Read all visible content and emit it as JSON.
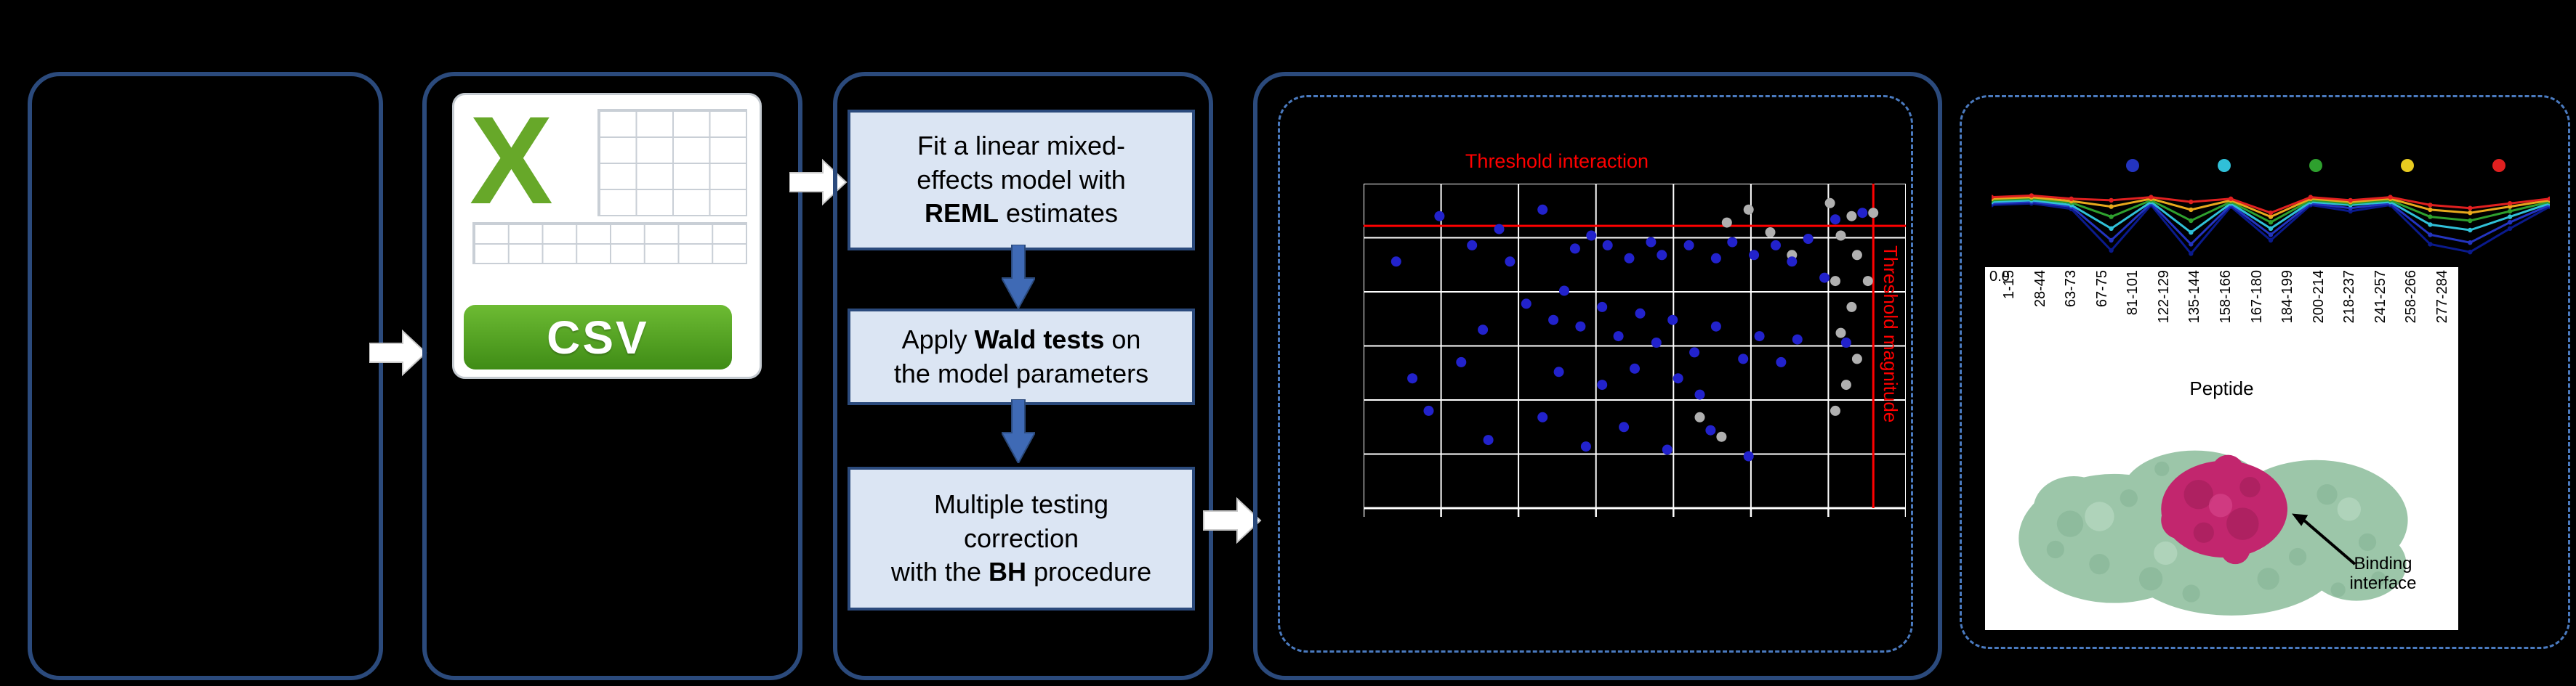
{
  "colors": {
    "bg": "#000000",
    "panel_border": "#2b4a7c",
    "dashed_border": "#4a7abf",
    "box_fill": "#dbe5f3",
    "box_border": "#2b4a7c",
    "down_arrow": "#3f6ab5",
    "block_arrow_fill": "#ffffff",
    "block_arrow_edge": "#c8c8c8",
    "threshold_red": "#ff0000",
    "grid_line": "#ffffff",
    "scatter_blue": "#2222cc",
    "scatter_gray": "#b0b0b0",
    "csv_green": "#67a829",
    "csv_banner_top": "#6dbb33",
    "csv_banner_bottom": "#3f8c16",
    "csv_grid_line": "#c9cfd6",
    "protein_green": "#9cc6a9",
    "protein_green_dark": "#7fae8e",
    "protein_green_light": "#bcdcc6",
    "protein_magenta": "#c2266e",
    "protein_magenta_dark": "#9e1d58",
    "protein_magenta_light": "#d9478d"
  },
  "csv": {
    "letter": "X",
    "label": "CSV"
  },
  "steps": [
    {
      "lines": [
        [
          [
            "Fit a linear mixed-",
            0
          ]
        ],
        [
          [
            "effects model with",
            0
          ]
        ],
        [
          [
            "REML",
            1
          ],
          [
            " estimates",
            0
          ]
        ]
      ]
    },
    {
      "lines": [
        [
          [
            "Apply ",
            0
          ],
          [
            "Wald tests",
            1
          ],
          [
            " on",
            0
          ]
        ],
        [
          [
            "the model parameters",
            0
          ]
        ]
      ]
    },
    {
      "lines": [
        [
          [
            "Multiple testing",
            0
          ]
        ],
        [
          [
            "correction",
            0
          ]
        ],
        [
          [
            "with the ",
            0
          ],
          [
            "BH",
            1
          ],
          [
            " procedure",
            0
          ]
        ]
      ]
    }
  ],
  "volcano": {
    "title": "Threshold interaction",
    "side_label": "Threshold magnitude",
    "grid_cols": 7,
    "grid_rows": 6,
    "hline_y": 0.13,
    "vline_x": 0.94,
    "blue_points": [
      [
        0.14,
        0.1
      ],
      [
        0.2,
        0.19
      ],
      [
        0.25,
        0.14
      ],
      [
        0.33,
        0.08
      ],
      [
        0.39,
        0.2
      ],
      [
        0.42,
        0.16
      ],
      [
        0.45,
        0.19
      ],
      [
        0.49,
        0.23
      ],
      [
        0.53,
        0.18
      ],
      [
        0.55,
        0.22
      ],
      [
        0.6,
        0.19
      ],
      [
        0.65,
        0.23
      ],
      [
        0.68,
        0.18
      ],
      [
        0.72,
        0.22
      ],
      [
        0.76,
        0.19
      ],
      [
        0.79,
        0.24
      ],
      [
        0.82,
        0.17
      ],
      [
        0.87,
        0.11
      ],
      [
        0.92,
        0.09
      ],
      [
        0.3,
        0.37
      ],
      [
        0.35,
        0.42
      ],
      [
        0.37,
        0.33
      ],
      [
        0.4,
        0.44
      ],
      [
        0.44,
        0.38
      ],
      [
        0.47,
        0.47
      ],
      [
        0.51,
        0.4
      ],
      [
        0.54,
        0.49
      ],
      [
        0.57,
        0.42
      ],
      [
        0.61,
        0.52
      ],
      [
        0.65,
        0.44
      ],
      [
        0.7,
        0.54
      ],
      [
        0.73,
        0.47
      ],
      [
        0.77,
        0.55
      ],
      [
        0.8,
        0.48
      ],
      [
        0.12,
        0.7
      ],
      [
        0.23,
        0.79
      ],
      [
        0.33,
        0.72
      ],
      [
        0.41,
        0.81
      ],
      [
        0.48,
        0.75
      ],
      [
        0.56,
        0.82
      ],
      [
        0.64,
        0.76
      ],
      [
        0.71,
        0.84
      ],
      [
        0.06,
        0.24
      ],
      [
        0.09,
        0.6
      ],
      [
        0.27,
        0.24
      ],
      [
        0.85,
        0.29
      ],
      [
        0.89,
        0.49
      ],
      [
        0.18,
        0.55
      ],
      [
        0.22,
        0.45
      ],
      [
        0.58,
        0.6
      ],
      [
        0.62,
        0.65
      ],
      [
        0.36,
        0.58
      ],
      [
        0.44,
        0.62
      ],
      [
        0.5,
        0.57
      ]
    ],
    "gray_points": [
      [
        0.86,
        0.06
      ],
      [
        0.9,
        0.1
      ],
      [
        0.88,
        0.16
      ],
      [
        0.91,
        0.22
      ],
      [
        0.87,
        0.3
      ],
      [
        0.9,
        0.38
      ],
      [
        0.88,
        0.46
      ],
      [
        0.91,
        0.54
      ],
      [
        0.89,
        0.62
      ],
      [
        0.87,
        0.7
      ],
      [
        0.67,
        0.12
      ],
      [
        0.71,
        0.08
      ],
      [
        0.75,
        0.15
      ],
      [
        0.79,
        0.22
      ],
      [
        0.62,
        0.72
      ],
      [
        0.66,
        0.78
      ],
      [
        0.94,
        0.09
      ],
      [
        0.93,
        0.3
      ]
    ]
  },
  "profile": {
    "legend_colors": [
      "#2334c0",
      "#30c0d8",
      "#2ea02e",
      "#e8cb20",
      "#e02020"
    ],
    "series": [
      {
        "color": "#0a1a8c",
        "values": [
          0.3,
          0.28,
          0.35,
          0.88,
          0.3,
          0.92,
          0.32,
          0.75,
          0.3,
          0.38,
          0.3,
          0.8,
          0.9,
          0.6,
          0.32
        ]
      },
      {
        "color": "#2334c0",
        "values": [
          0.28,
          0.26,
          0.32,
          0.75,
          0.28,
          0.8,
          0.3,
          0.68,
          0.28,
          0.34,
          0.28,
          0.68,
          0.78,
          0.52,
          0.3
        ]
      },
      {
        "color": "#30c0d8",
        "values": [
          0.26,
          0.24,
          0.3,
          0.6,
          0.26,
          0.65,
          0.28,
          0.6,
          0.26,
          0.3,
          0.26,
          0.55,
          0.62,
          0.45,
          0.28
        ]
      },
      {
        "color": "#2ea02e",
        "values": [
          0.24,
          0.22,
          0.27,
          0.45,
          0.24,
          0.5,
          0.26,
          0.52,
          0.24,
          0.28,
          0.24,
          0.45,
          0.5,
          0.38,
          0.26
        ]
      },
      {
        "color": "#e8a81c",
        "values": [
          0.22,
          0.2,
          0.25,
          0.32,
          0.22,
          0.36,
          0.24,
          0.45,
          0.22,
          0.26,
          0.22,
          0.36,
          0.4,
          0.32,
          0.24
        ]
      },
      {
        "color": "#e02020",
        "values": [
          0.2,
          0.18,
          0.22,
          0.24,
          0.2,
          0.26,
          0.22,
          0.4,
          0.2,
          0.24,
          0.2,
          0.3,
          0.34,
          0.28,
          0.22
        ]
      }
    ],
    "y_tick": "0.0",
    "peptides": [
      "1-15",
      "28-44",
      "63-73",
      "67-75",
      "81-101",
      "122-129",
      "135-144",
      "158-166",
      "167-180",
      "184-199",
      "200-214",
      "218-237",
      "241-257",
      "258-266",
      "277-284"
    ],
    "x_title": "Peptide",
    "annotation": "Binding interface"
  }
}
